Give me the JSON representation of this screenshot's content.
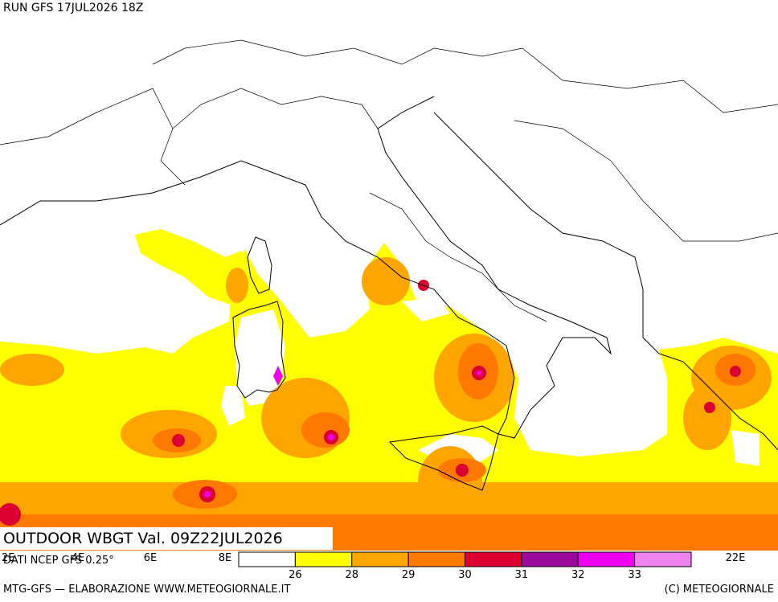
{
  "header": {
    "run": "RUN GFS 17JUL2026 18Z"
  },
  "map": {
    "field_label": "OUTDOOR WBGT Val. 09Z22JUL2026",
    "source": "DATI NCEP GFS 0.25°",
    "longitude_labels": [
      "2E",
      "4E",
      "6E",
      "8E",
      "22E"
    ]
  },
  "legend": {
    "colors": [
      "#ffffff",
      "#ffff00",
      "#ffa500",
      "#ff7800",
      "#dc0032",
      "#9b0b9b",
      "#ee00ee",
      "#ee82ee"
    ],
    "thresholds": [
      26,
      28,
      29,
      30,
      31,
      32,
      33
    ]
  },
  "footer": {
    "left": "MTG-GFS — ELABORAZIONE WWW.METEOGIORNALE.IT",
    "right": "(C) METEOGIORNALE"
  }
}
